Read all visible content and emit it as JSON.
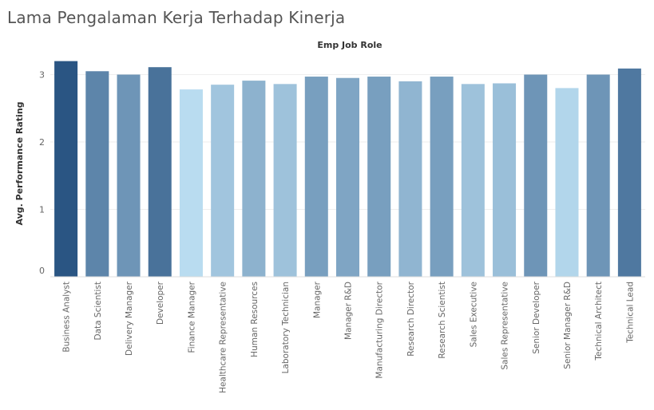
{
  "chart_data": {
    "type": "bar",
    "title": "Lama Pengalaman Kerja Terhadap Kinerja",
    "header_label": "Emp Job Role",
    "ylabel": "Avg. Performance Rating",
    "ylim": [
      0,
      3.3
    ],
    "yticks": [
      0,
      1,
      2,
      3
    ],
    "grid": true,
    "color_range": [
      "#b9dcf0",
      "#2a5583"
    ],
    "categories": [
      "Business Analyst",
      "Data Scientist",
      "Delivery Manager",
      "Developer",
      "Finance Manager",
      "Healthcare Representative",
      "Human Resources",
      "Laboratory Technician",
      "Manager",
      "Manager R&D",
      "Manufacturing Director",
      "Research Director",
      "Research Scientist",
      "Sales Executive",
      "Sales Representative",
      "Senior Developer",
      "Senior Manager R&D",
      "Technical Architect",
      "Technical Lead"
    ],
    "values": [
      3.2,
      3.05,
      3.0,
      3.11,
      2.78,
      2.85,
      2.91,
      2.86,
      2.97,
      2.95,
      2.97,
      2.9,
      2.97,
      2.86,
      2.87,
      3.0,
      2.8,
      3.0,
      3.09
    ]
  }
}
